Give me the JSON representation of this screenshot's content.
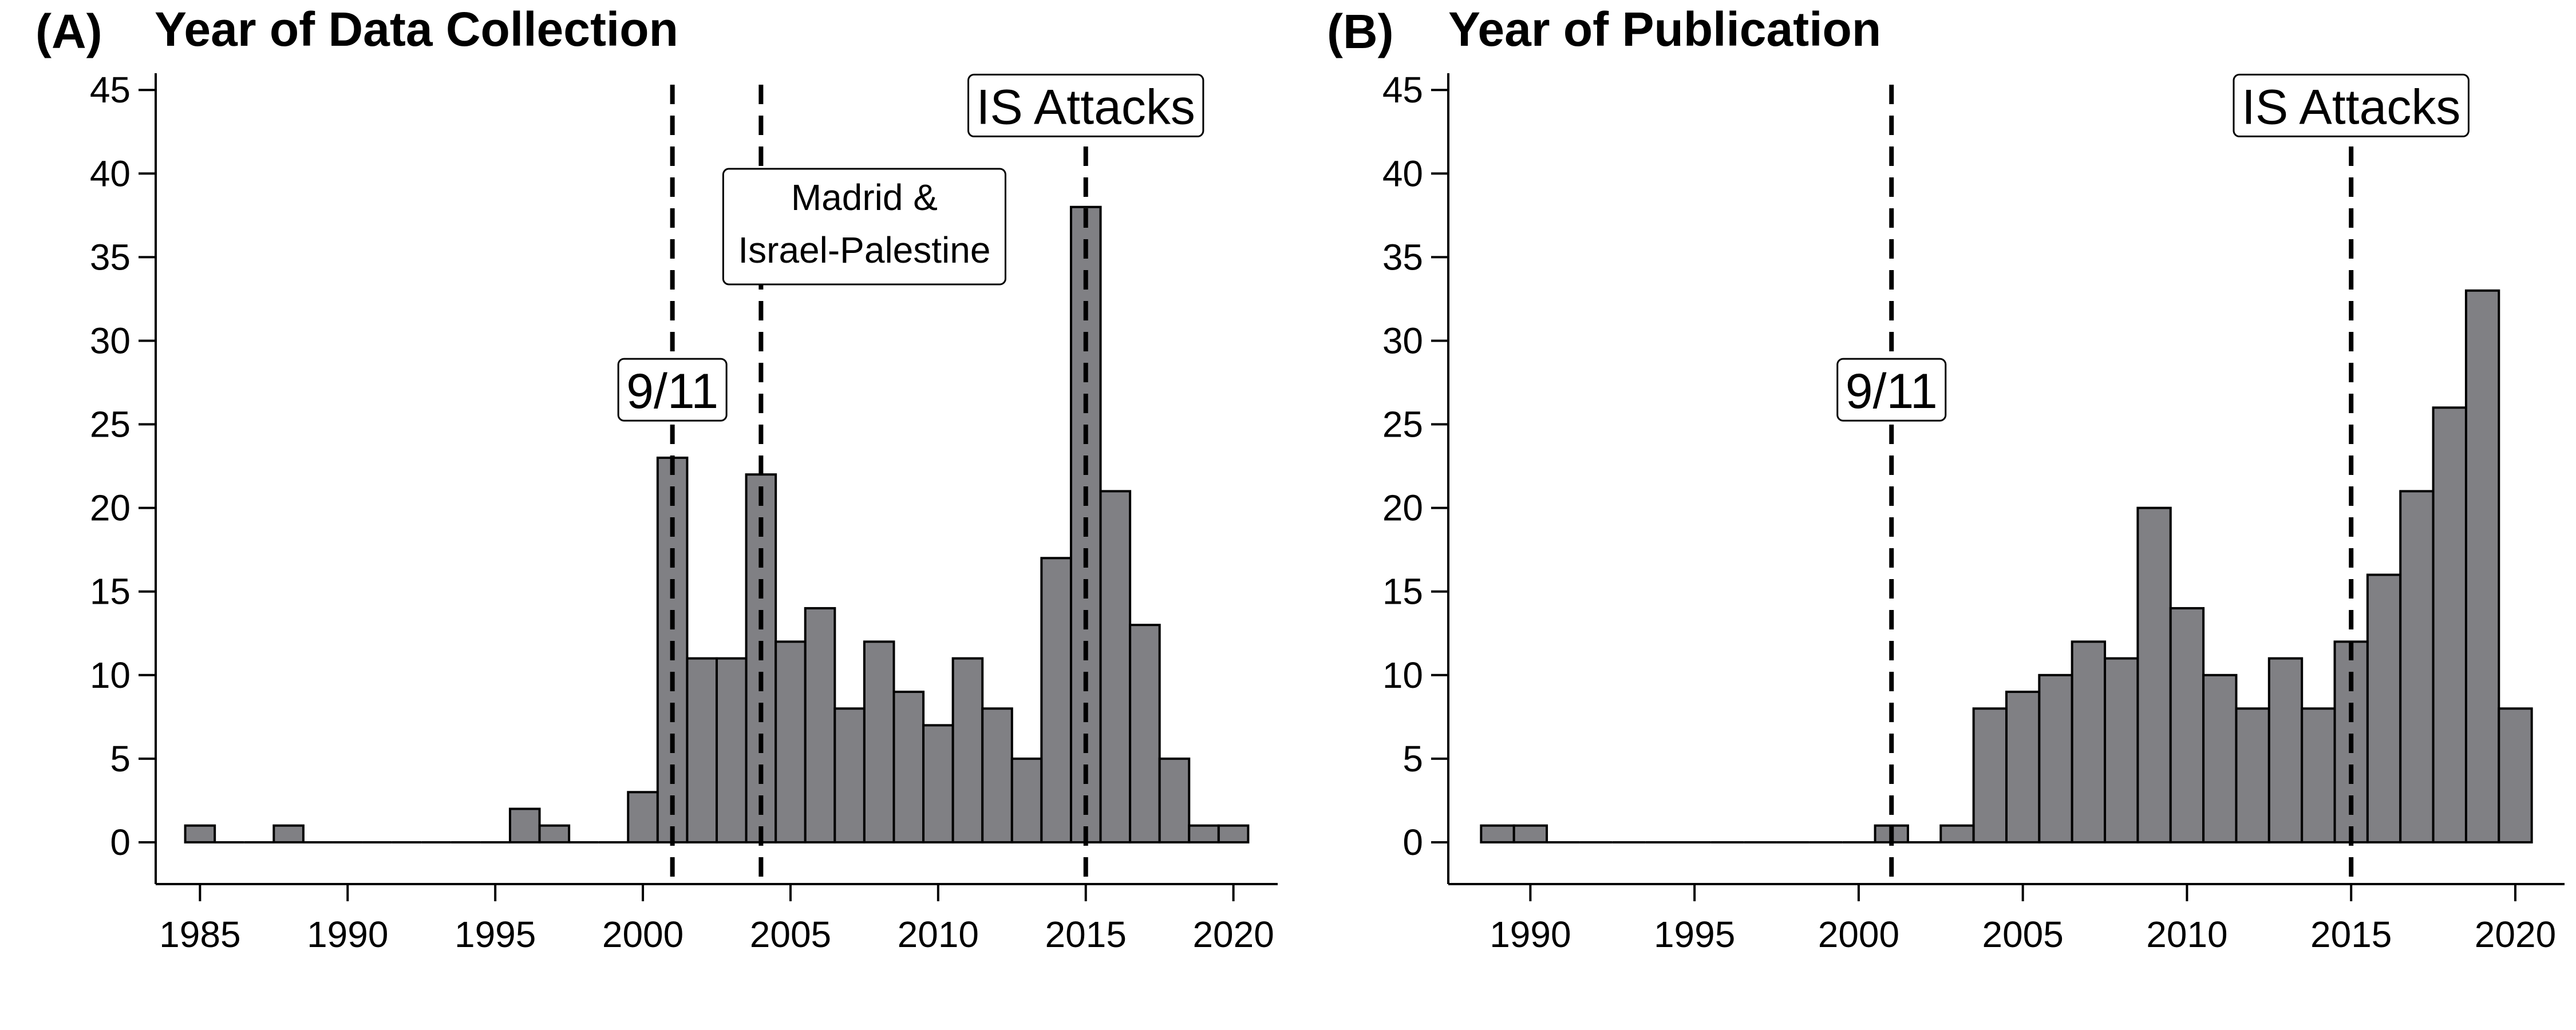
{
  "colors": {
    "bar_fill": "#808084",
    "bar_stroke": "#000000",
    "axis": "#000000"
  },
  "chart_data": [
    {
      "type": "bar",
      "panel_label": "(A)",
      "title": "Year of Data Collection",
      "xlabel": "",
      "ylabel": "",
      "xlim": [
        1983.5,
        2021.5
      ],
      "ylim": [
        -2.5,
        46
      ],
      "x_ticks": [
        1985,
        1990,
        1995,
        2000,
        2005,
        2010,
        2015,
        2020
      ],
      "y_ticks": [
        0,
        5,
        10,
        15,
        20,
        25,
        30,
        35,
        40,
        45
      ],
      "bin_width": 1,
      "x": [
        1985,
        1986,
        1987,
        1988,
        1989,
        1990,
        1991,
        1992,
        1993,
        1994,
        1995,
        1996,
        1997,
        1998,
        1999,
        2000,
        2001,
        2002,
        2003,
        2004,
        2005,
        2006,
        2007,
        2008,
        2009,
        2010,
        2011,
        2012,
        2013,
        2014,
        2015,
        2016,
        2017,
        2018,
        2019,
        2020
      ],
      "values": [
        1,
        0,
        0,
        1,
        0,
        0,
        0,
        0,
        0,
        0,
        0,
        2,
        1,
        0,
        0,
        3,
        23,
        11,
        11,
        22,
        12,
        14,
        8,
        12,
        9,
        7,
        11,
        8,
        5,
        17,
        38,
        21,
        13,
        5,
        1,
        1
      ],
      "vlines": [
        2001,
        2004,
        2015
      ],
      "grid": false,
      "annotations": [
        {
          "text": "9/11",
          "x": 2001,
          "y": 27
        },
        {
          "lines": [
            "Madrid &",
            "Israel-Palestine"
          ],
          "x": 2007.5,
          "y": 37
        },
        {
          "text": "IS Attacks",
          "x": 2015,
          "y": 44
        }
      ]
    },
    {
      "type": "bar",
      "panel_label": "(B)",
      "title": "Year of Publication",
      "xlabel": "",
      "ylabel": "",
      "xlim": [
        1987.5,
        2021.5
      ],
      "ylim": [
        -2.5,
        46
      ],
      "x_ticks": [
        1990,
        1995,
        2000,
        2005,
        2010,
        2015,
        2020
      ],
      "y_ticks": [
        0,
        5,
        10,
        15,
        20,
        25,
        30,
        35,
        40,
        45
      ],
      "bin_width": 1,
      "x": [
        1989,
        1990,
        1991,
        1992,
        1993,
        1994,
        1995,
        1996,
        1997,
        1998,
        1999,
        2000,
        2001,
        2002,
        2003,
        2004,
        2005,
        2006,
        2007,
        2008,
        2009,
        2010,
        2011,
        2012,
        2013,
        2014,
        2015,
        2016,
        2017,
        2018,
        2019,
        2020
      ],
      "values": [
        1,
        1,
        0,
        0,
        0,
        0,
        0,
        0,
        0,
        0,
        0,
        0,
        1,
        0,
        1,
        8,
        9,
        10,
        12,
        11,
        20,
        14,
        10,
        8,
        11,
        8,
        12,
        16,
        21,
        26,
        33,
        8
      ],
      "vlines": [
        2001,
        2015
      ],
      "grid": false,
      "annotations": [
        {
          "text": "9/11",
          "x": 2001,
          "y": 27
        },
        {
          "text": "IS Attacks",
          "x": 2015,
          "y": 44
        }
      ]
    }
  ]
}
